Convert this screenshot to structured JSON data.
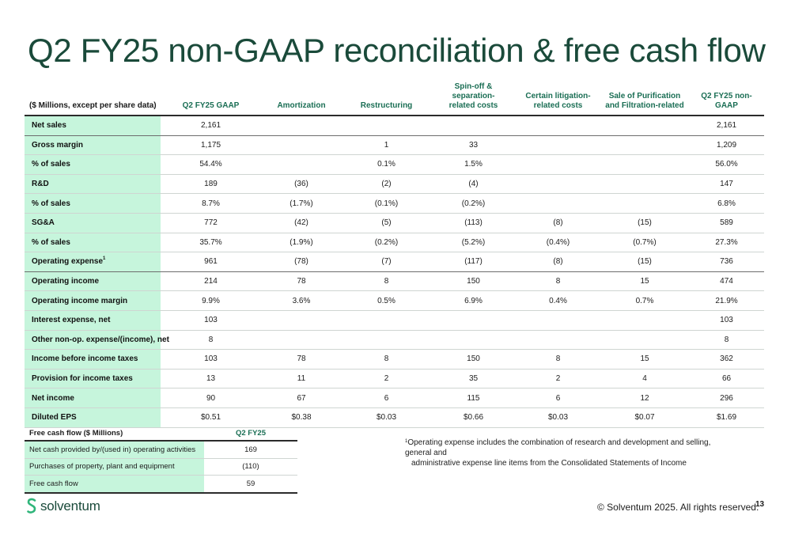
{
  "title": "Q2 FY25 non-GAAP reconciliation & free cash flow",
  "main_table": {
    "headers": [
      [
        "($ Millions, except per share data)"
      ],
      [
        "Q2 FY25 GAAP"
      ],
      [
        "Amortization"
      ],
      [
        "Restructuring"
      ],
      [
        "Spin-off & separation-",
        "related costs"
      ],
      [
        "Certain litigation-",
        "related costs"
      ],
      [
        "Sale of Purification",
        "and Filtration-related"
      ],
      [
        "Q2 FY25 non-GAAP"
      ]
    ],
    "rows": [
      {
        "label": "Net sales",
        "values": [
          "2,161",
          "",
          "",
          "",
          "",
          "",
          "2,161"
        ]
      },
      {
        "label": "Gross margin",
        "values": [
          "1,175",
          "",
          "1",
          "33",
          "",
          "",
          "1,209"
        ]
      },
      {
        "label": "% of sales",
        "values": [
          "54.4%",
          "",
          "0.1%",
          "1.5%",
          "",
          "",
          "56.0%"
        ]
      },
      {
        "label": "R&D",
        "values": [
          "189",
          "(36)",
          "(2)",
          "(4)",
          "",
          "",
          "147"
        ]
      },
      {
        "label": "% of sales",
        "values": [
          "8.7%",
          "(1.7%)",
          "(0.1%)",
          "(0.2%)",
          "",
          "",
          "6.8%"
        ]
      },
      {
        "label": "SG&A",
        "values": [
          "772",
          "(42)",
          "(5)",
          "(113)",
          "(8)",
          "(15)",
          "589"
        ]
      },
      {
        "label": "% of sales",
        "values": [
          "35.7%",
          "(1.9%)",
          "(0.2%)",
          "(5.2%)",
          "(0.4%)",
          "(0.7%)",
          "27.3%"
        ]
      },
      {
        "label": "Operating expense",
        "sup": "1",
        "values": [
          "961",
          "(78)",
          "(7)",
          "(117)",
          "(8)",
          "(15)",
          "736"
        ]
      },
      {
        "label": "Operating income",
        "values": [
          "214",
          "78",
          "8",
          "150",
          "8",
          "15",
          "474"
        ]
      },
      {
        "label": "Operating income margin",
        "values": [
          "9.9%",
          "3.6%",
          "0.5%",
          "6.9%",
          "0.4%",
          "0.7%",
          "21.9%"
        ]
      },
      {
        "label": "Interest expense, net",
        "values": [
          "103",
          "",
          "",
          "",
          "",
          "",
          "103"
        ]
      },
      {
        "label": "Other non-op. expense/(income), net",
        "values": [
          "8",
          "",
          "",
          "",
          "",
          "",
          "8"
        ]
      },
      {
        "label": "Income before income taxes",
        "values": [
          "103",
          "78",
          "8",
          "150",
          "8",
          "15",
          "362"
        ]
      },
      {
        "label": "Provision for income taxes",
        "values": [
          "13",
          "11",
          "2",
          "35",
          "2",
          "4",
          "66"
        ]
      },
      {
        "label": "Net income",
        "values": [
          "90",
          "67",
          "6",
          "115",
          "6",
          "12",
          "296"
        ]
      },
      {
        "label": "Diluted EPS",
        "values": [
          "$0.51",
          "$0.38",
          "$0.03",
          "$0.66",
          "$0.03",
          "$0.07",
          "$1.69"
        ]
      }
    ]
  },
  "fcf_table": {
    "header_label": "Free cash flow ($ Millions)",
    "header_col": "Q2 FY25",
    "rows": [
      {
        "label": "Net cash provided by/(used in) operating activities",
        "value": "169"
      },
      {
        "label": "Purchases of property, plant and equipment",
        "value": "(110)"
      },
      {
        "label": "Free cash flow",
        "value": "59"
      }
    ]
  },
  "footnote": {
    "marker": "1",
    "line1": "Operating expense includes the combination of research and development and selling, general and",
    "line2": "administrative expense line items from the Consolidated Statements of Income"
  },
  "logo": {
    "text": "solventum",
    "icon": "solventum-logo-icon"
  },
  "copyright": "© Solventum 2025. All rights reserved.",
  "page_number": "13",
  "colors": {
    "accent": "#1a6e54",
    "title": "#1a4a3a",
    "label_bg": "#c6f5dc"
  }
}
